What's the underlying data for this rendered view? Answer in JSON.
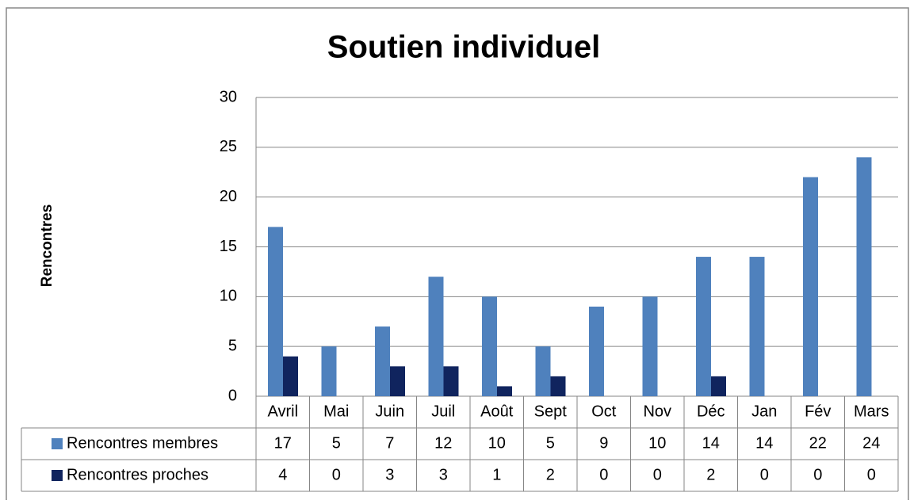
{
  "chart_data": {
    "type": "bar",
    "title": "Soutien individuel",
    "y_label": "Rencontres",
    "categories": [
      "Avril",
      "Mai",
      "Juin",
      "Juil",
      "Août",
      "Sept",
      "Oct",
      "Nov",
      "Déc",
      "Jan",
      "Fév",
      "Mars"
    ],
    "series": [
      {
        "name": "Rencontres membres",
        "color": "#4f81bd",
        "values": [
          17,
          5,
          7,
          12,
          10,
          5,
          9,
          10,
          14,
          14,
          22,
          24
        ]
      },
      {
        "name": "Rencontres proches",
        "color": "#10245e",
        "values": [
          4,
          0,
          3,
          3,
          1,
          2,
          0,
          0,
          2,
          0,
          0,
          0
        ]
      }
    ],
    "ylim": [
      0,
      30
    ],
    "yticks": [
      0,
      5,
      10,
      15,
      20,
      25,
      30
    ],
    "grid": true
  }
}
